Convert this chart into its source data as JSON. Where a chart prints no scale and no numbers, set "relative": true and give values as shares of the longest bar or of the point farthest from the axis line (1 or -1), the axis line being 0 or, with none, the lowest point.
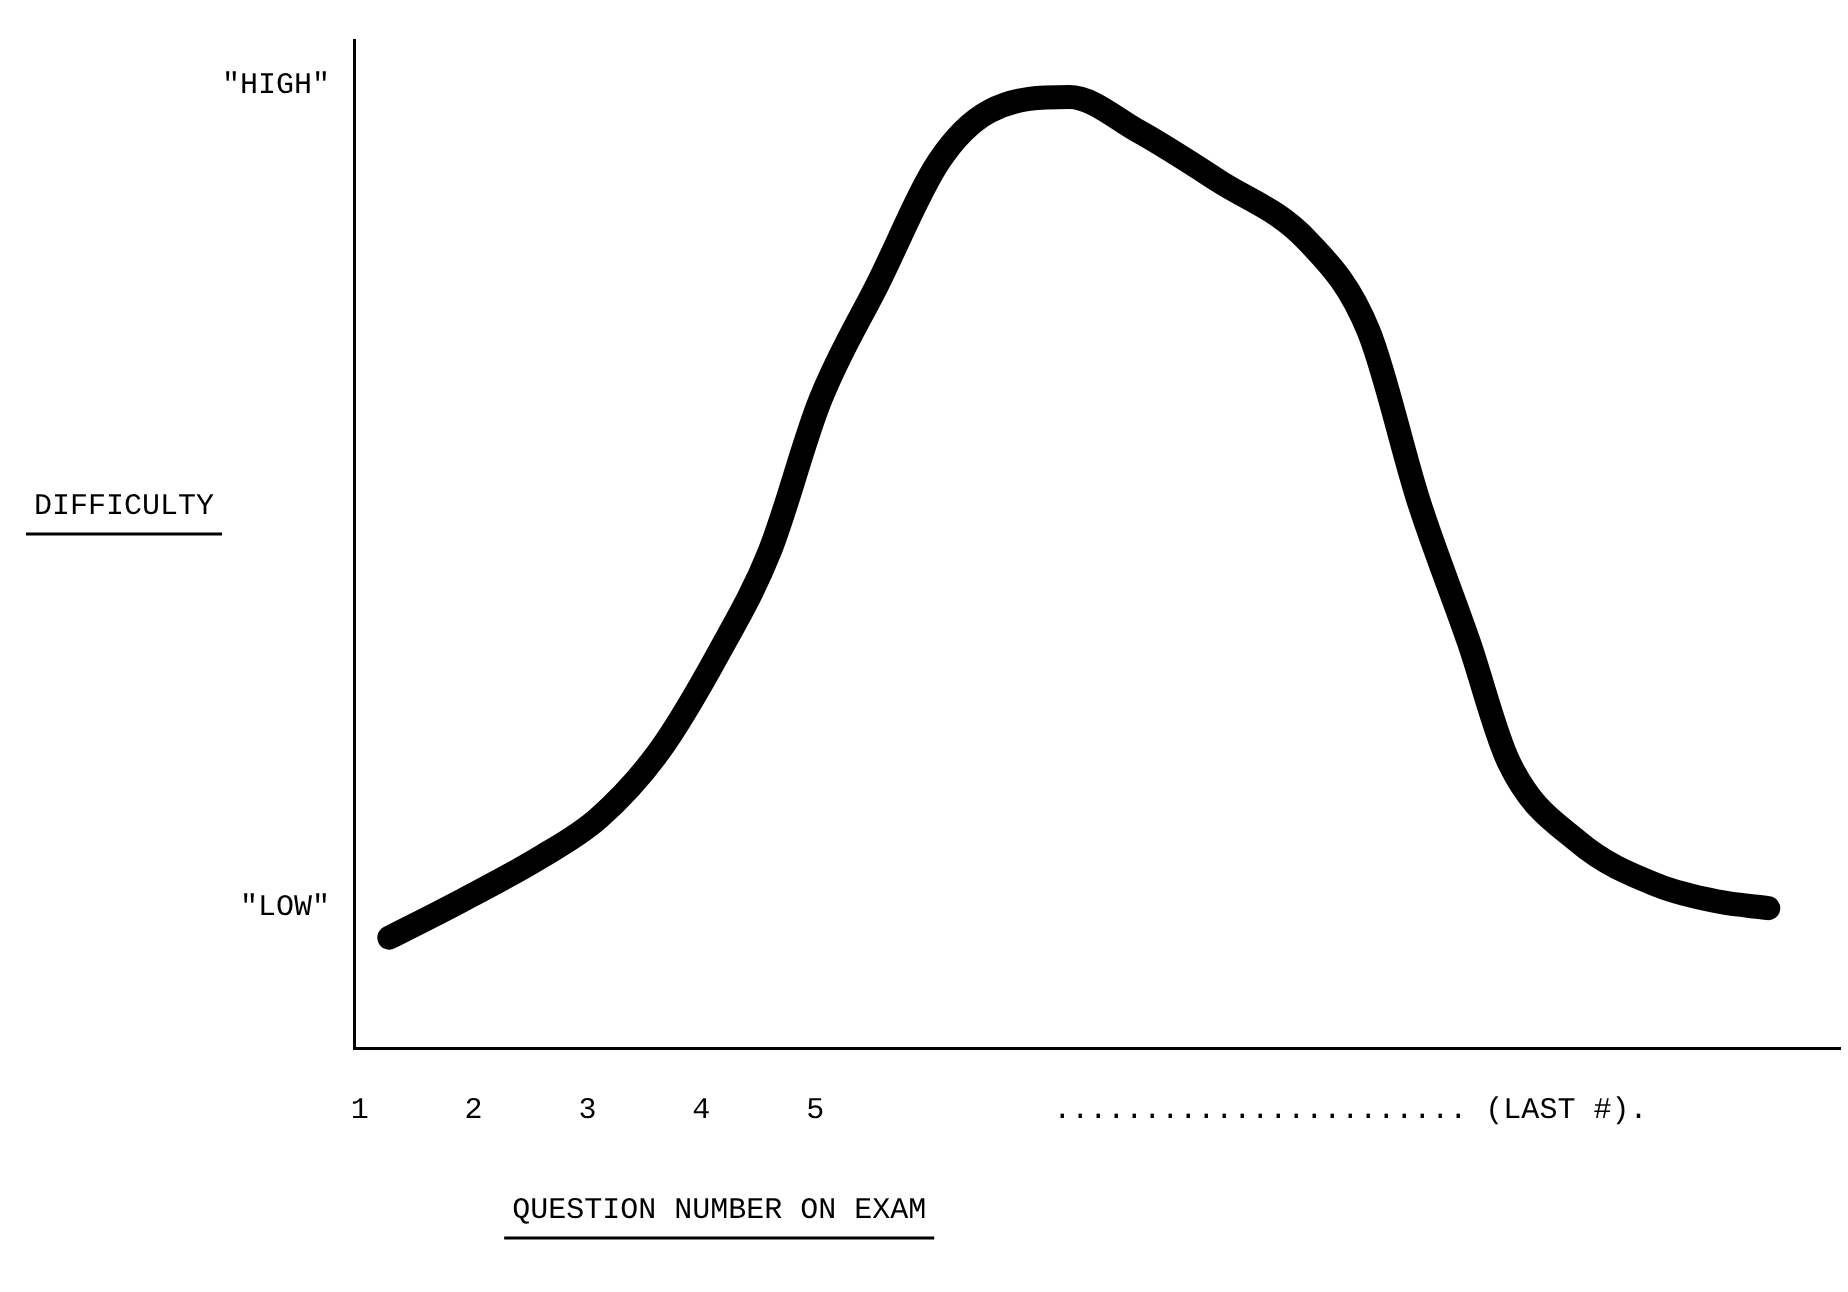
{
  "chart_data": {
    "type": "line",
    "relative": true,
    "xlabel": "QUESTION NUMBER ON EXAM",
    "ylabel": "DIFFICULTY",
    "annotations": [
      "\"HIGH\"",
      "\"LOW\""
    ],
    "xlim": [
      0.95,
      14
    ],
    "xticks": [
      1,
      2,
      3,
      4,
      5,
      {
        "value": 9.7,
        "label": "....................... (LAST #)."
      }
    ],
    "grid": false,
    "legend": false,
    "marker": "none",
    "line_style": "solid",
    "series": [
      {
        "color": "#000000",
        "x": [
          1.26,
          1.88,
          2.58,
          3.1,
          3.63,
          4.16,
          4.6,
          5.04,
          5.56,
          6.09,
          6.53,
          7.23,
          7.84,
          8.54,
          9.33,
          9.86,
          10.3,
          10.74,
          11.09,
          11.7,
          12.4,
          12.93,
          13.37
        ],
        "values": [
          0.116,
          0.154,
          0.2,
          0.242,
          0.312,
          0.417,
          0.522,
          0.68,
          0.806,
          0.933,
          0.985,
          1.0,
          0.964,
          0.912,
          0.848,
          0.754,
          0.575,
          0.427,
          0.301,
          0.217,
          0.171,
          0.154,
          0.147
        ]
      }
    ]
  }
}
